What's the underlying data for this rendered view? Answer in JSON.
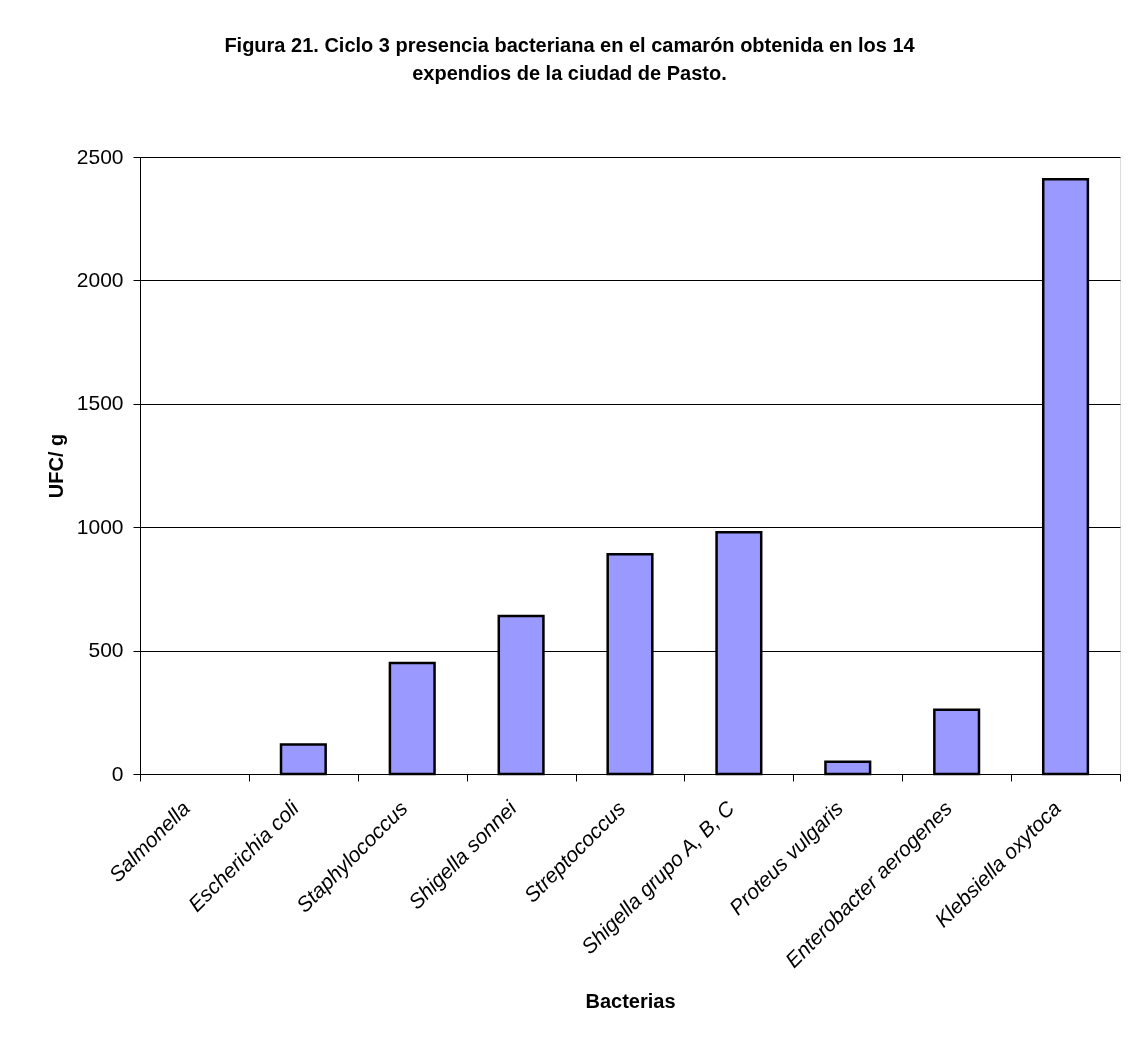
{
  "chart_data": {
    "type": "bar",
    "title": "Figura 21. Ciclo 3 presencia bacteriana en el camarón obtenida en los 14 expendios de la ciudad de Pasto.",
    "xlabel": "Bacterias",
    "ylabel": "UFC/ g",
    "categories": [
      "Salmonella",
      "Escherichia coli",
      "Staphylococcus",
      "Shigella sonnei",
      "Streptococcus",
      "Shigella grupo A, B, C",
      "Proteus vulgaris",
      "Enterobacter aerogenes",
      "Klebsiella oxytoca"
    ],
    "values": [
      0,
      120,
      450,
      640,
      890,
      980,
      50,
      260,
      2410
    ],
    "color": "#9999ff",
    "ylim": [
      0,
      2500
    ],
    "yticks": [
      0,
      500,
      1000,
      1500,
      2000,
      2500
    ],
    "grid": "y"
  }
}
